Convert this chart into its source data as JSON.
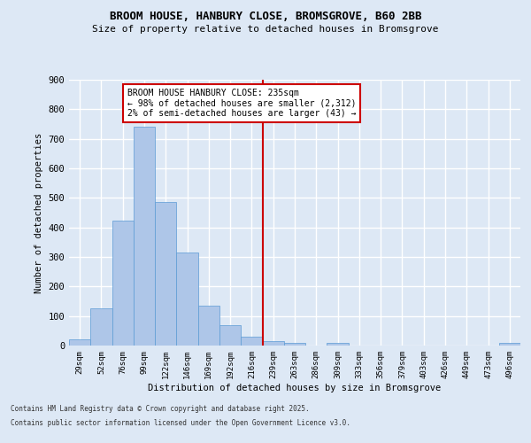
{
  "title_line1": "BROOM HOUSE, HANBURY CLOSE, BROMSGROVE, B60 2BB",
  "title_line2": "Size of property relative to detached houses in Bromsgrove",
  "xlabel": "Distribution of detached houses by size in Bromsgrove",
  "ylabel": "Number of detached properties",
  "categories": [
    "29sqm",
    "52sqm",
    "76sqm",
    "99sqm",
    "122sqm",
    "146sqm",
    "169sqm",
    "192sqm",
    "216sqm",
    "239sqm",
    "263sqm",
    "286sqm",
    "309sqm",
    "333sqm",
    "356sqm",
    "379sqm",
    "403sqm",
    "426sqm",
    "449sqm",
    "473sqm",
    "496sqm"
  ],
  "bar_heights": [
    20,
    125,
    422,
    740,
    485,
    315,
    135,
    68,
    30,
    15,
    8,
    0,
    10,
    0,
    0,
    0,
    0,
    0,
    0,
    0,
    8
  ],
  "bar_color": "#aec6e8",
  "bar_edge_color": "#5b9bd5",
  "background_color": "#dde8f5",
  "grid_color": "#ffffff",
  "vline_x_idx": 8.5,
  "vline_color": "#cc0000",
  "annotation_text": "BROOM HOUSE HANBURY CLOSE: 235sqm\n← 98% of detached houses are smaller (2,312)\n2% of semi-detached houses are larger (43) →",
  "annotation_box_color": "#ffffff",
  "annotation_box_edge": "#cc0000",
  "footnote_line1": "Contains HM Land Registry data © Crown copyright and database right 2025.",
  "footnote_line2": "Contains public sector information licensed under the Open Government Licence v3.0.",
  "ylim": [
    0,
    900
  ],
  "yticks": [
    0,
    100,
    200,
    300,
    400,
    500,
    600,
    700,
    800,
    900
  ]
}
